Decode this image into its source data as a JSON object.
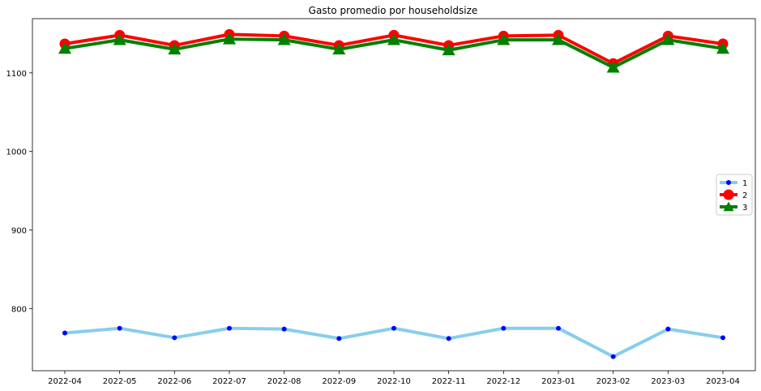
{
  "chart_data": {
    "type": "line",
    "title": "Gasto promedio por householdsize",
    "xlabel": "",
    "ylabel": "",
    "categories": [
      "2022-04",
      "2022-05",
      "2022-06",
      "2022-07",
      "2022-08",
      "2022-09",
      "2022-10",
      "2022-11",
      "2022-12",
      "2023-01",
      "2023-02",
      "2023-03",
      "2023-04"
    ],
    "ylim": [
      721,
      1169
    ],
    "yticks": [
      800,
      900,
      1000,
      1100
    ],
    "grid": false,
    "legend_position": "center-right",
    "series": [
      {
        "name": "1",
        "line_color": "#87ceeb",
        "marker": "circle-small",
        "marker_color": "#0000ff",
        "values": [
          769,
          775,
          763,
          775,
          774,
          762,
          775,
          762,
          775,
          775,
          739,
          774,
          763
        ]
      },
      {
        "name": "2",
        "line_color": "#ff0000",
        "marker": "circle-large",
        "marker_color": "#ff0000",
        "values": [
          1137,
          1148,
          1135,
          1149,
          1147,
          1135,
          1148,
          1135,
          1147,
          1148,
          1112,
          1147,
          1137
        ]
      },
      {
        "name": "3",
        "line_color": "#008000",
        "marker": "triangle",
        "marker_color": "#008000",
        "values": [
          1131,
          1142,
          1130,
          1143,
          1142,
          1130,
          1142,
          1129,
          1142,
          1142,
          1107,
          1142,
          1131
        ]
      }
    ]
  }
}
